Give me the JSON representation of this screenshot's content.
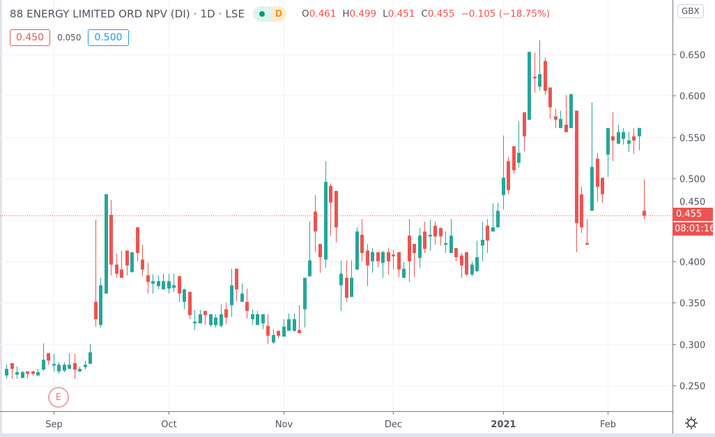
{
  "header": {
    "title": "88 ENERGY LIMITED ORD NPV (DI) · 1D · LSE",
    "badge_letter": "D",
    "ohlc": {
      "o_label": "O",
      "o": "0.461",
      "h_label": "H",
      "h": "0.499",
      "l_label": "L",
      "l": "0.451",
      "c_label": "C",
      "c": "0.455",
      "change": "−0.105 (−18.75%)"
    },
    "bid": "0.450",
    "spread": "0.050",
    "ask": "0.500"
  },
  "currency_button": "GBX",
  "last_price_label": "0.455",
  "countdown_label": "08:01:16",
  "earnings_marker": "E",
  "colors": {
    "up": "#26a69a",
    "down": "#ef5350",
    "grid": "#f0f3fa",
    "axis": "#787b86"
  },
  "chart_data": {
    "type": "candlestick",
    "title": "",
    "ylim": [
      0.2,
      0.68
    ],
    "y_ticks": [
      "0.250",
      "0.300",
      "0.350",
      "0.400",
      "0.450",
      "0.500",
      "0.550",
      "0.600",
      "0.650"
    ],
    "x_tick_labels": [
      {
        "label": "Sep",
        "candle": 9
      },
      {
        "label": "Oct",
        "candle": 31
      },
      {
        "label": "Nov",
        "candle": 53
      },
      {
        "label": "Dec",
        "candle": 74
      },
      {
        "label": "2021",
        "candle": 95,
        "bold": true
      },
      {
        "label": "Feb",
        "candle": 115
      }
    ],
    "grid": true,
    "last_price": 0.455,
    "candle_fields": [
      "open",
      "high",
      "low",
      "close"
    ],
    "candles": [
      [
        0.262,
        0.275,
        0.258,
        0.27
      ],
      [
        0.277,
        0.277,
        0.258,
        0.27
      ],
      [
        0.263,
        0.273,
        0.258,
        0.266
      ],
      [
        0.259,
        0.268,
        0.259,
        0.266
      ],
      [
        0.267,
        0.267,
        0.258,
        0.264
      ],
      [
        0.267,
        0.267,
        0.262,
        0.264
      ],
      [
        0.262,
        0.27,
        0.262,
        0.266
      ],
      [
        0.269,
        0.301,
        0.268,
        0.281
      ],
      [
        0.289,
        0.289,
        0.275,
        0.28
      ],
      [
        0.274,
        0.288,
        0.267,
        0.276
      ],
      [
        0.267,
        0.278,
        0.264,
        0.275
      ],
      [
        0.268,
        0.278,
        0.266,
        0.275
      ],
      [
        0.27,
        0.289,
        0.27,
        0.275
      ],
      [
        0.277,
        0.288,
        0.258,
        0.269
      ],
      [
        0.267,
        0.273,
        0.266,
        0.27
      ],
      [
        0.272,
        0.28,
        0.269,
        0.275
      ],
      [
        0.276,
        0.3,
        0.276,
        0.29
      ],
      [
        0.351,
        0.45,
        0.321,
        0.33
      ],
      [
        0.323,
        0.38,
        0.32,
        0.371
      ],
      [
        0.361,
        0.481,
        0.361,
        0.481
      ],
      [
        0.456,
        0.474,
        0.383,
        0.396
      ],
      [
        0.396,
        0.409,
        0.38,
        0.385
      ],
      [
        0.39,
        0.413,
        0.38,
        0.38
      ],
      [
        0.413,
        0.413,
        0.383,
        0.395
      ],
      [
        0.387,
        0.411,
        0.386,
        0.411
      ],
      [
        0.441,
        0.441,
        0.4,
        0.41
      ],
      [
        0.402,
        0.42,
        0.382,
        0.39
      ],
      [
        0.383,
        0.398,
        0.361,
        0.375
      ],
      [
        0.373,
        0.384,
        0.361,
        0.376
      ],
      [
        0.37,
        0.383,
        0.366,
        0.376
      ],
      [
        0.366,
        0.385,
        0.366,
        0.376
      ],
      [
        0.367,
        0.385,
        0.361,
        0.376
      ],
      [
        0.368,
        0.385,
        0.363,
        0.371
      ],
      [
        0.382,
        0.382,
        0.351,
        0.361
      ],
      [
        0.351,
        0.367,
        0.342,
        0.366
      ],
      [
        0.363,
        0.363,
        0.33,
        0.335
      ],
      [
        0.325,
        0.341,
        0.317,
        0.327
      ],
      [
        0.325,
        0.341,
        0.325,
        0.336
      ],
      [
        0.34,
        0.34,
        0.323,
        0.335
      ],
      [
        0.323,
        0.336,
        0.321,
        0.336
      ],
      [
        0.323,
        0.336,
        0.32,
        0.332
      ],
      [
        0.322,
        0.348,
        0.32,
        0.336
      ],
      [
        0.342,
        0.35,
        0.324,
        0.332
      ],
      [
        0.347,
        0.391,
        0.333,
        0.371
      ],
      [
        0.391,
        0.391,
        0.352,
        0.366
      ],
      [
        0.351,
        0.373,
        0.351,
        0.361
      ],
      [
        0.351,
        0.367,
        0.331,
        0.34
      ],
      [
        0.33,
        0.342,
        0.323,
        0.336
      ],
      [
        0.323,
        0.34,
        0.323,
        0.336
      ],
      [
        0.325,
        0.336,
        0.318,
        0.336
      ],
      [
        0.322,
        0.336,
        0.3,
        0.31
      ],
      [
        0.302,
        0.318,
        0.3,
        0.311
      ],
      [
        0.316,
        0.316,
        0.307,
        0.31
      ],
      [
        0.309,
        0.33,
        0.309,
        0.321
      ],
      [
        0.316,
        0.337,
        0.316,
        0.33
      ],
      [
        0.316,
        0.337,
        0.315,
        0.33
      ],
      [
        0.317,
        0.347,
        0.313,
        0.313
      ],
      [
        0.342,
        0.38,
        0.32,
        0.38
      ],
      [
        0.382,
        0.448,
        0.381,
        0.401
      ],
      [
        0.46,
        0.48,
        0.411,
        0.436
      ],
      [
        0.421,
        0.421,
        0.386,
        0.405
      ],
      [
        0.402,
        0.521,
        0.392,
        0.496
      ],
      [
        0.491,
        0.494,
        0.431,
        0.471
      ],
      [
        0.485,
        0.485,
        0.423,
        0.441
      ],
      [
        0.371,
        0.401,
        0.34,
        0.385
      ],
      [
        0.38,
        0.401,
        0.351,
        0.356
      ],
      [
        0.357,
        0.401,
        0.357,
        0.38
      ],
      [
        0.39,
        0.441,
        0.39,
        0.436
      ],
      [
        0.432,
        0.451,
        0.4,
        0.41
      ],
      [
        0.413,
        0.421,
        0.37,
        0.395
      ],
      [
        0.4,
        0.416,
        0.386,
        0.411
      ],
      [
        0.411,
        0.411,
        0.393,
        0.4
      ],
      [
        0.398,
        0.413,
        0.38,
        0.411
      ],
      [
        0.411,
        0.416,
        0.384,
        0.4
      ],
      [
        0.408,
        0.414,
        0.39,
        0.406
      ],
      [
        0.411,
        0.411,
        0.381,
        0.39
      ],
      [
        0.38,
        0.399,
        0.38,
        0.391
      ],
      [
        0.431,
        0.451,
        0.375,
        0.4
      ],
      [
        0.421,
        0.421,
        0.381,
        0.41
      ],
      [
        0.404,
        0.44,
        0.392,
        0.431
      ],
      [
        0.436,
        0.448,
        0.41,
        0.415
      ],
      [
        0.43,
        0.45,
        0.413,
        0.432
      ],
      [
        0.443,
        0.448,
        0.42,
        0.43
      ],
      [
        0.44,
        0.441,
        0.419,
        0.43
      ],
      [
        0.42,
        0.436,
        0.41,
        0.422
      ],
      [
        0.41,
        0.451,
        0.41,
        0.431
      ],
      [
        0.416,
        0.416,
        0.4,
        0.405
      ],
      [
        0.407,
        0.41,
        0.38,
        0.395
      ],
      [
        0.411,
        0.411,
        0.382,
        0.384
      ],
      [
        0.384,
        0.4,
        0.382,
        0.396
      ],
      [
        0.388,
        0.425,
        0.387,
        0.405
      ],
      [
        0.419,
        0.448,
        0.4,
        0.426
      ],
      [
        0.443,
        0.451,
        0.41,
        0.425
      ],
      [
        0.436,
        0.47,
        0.436,
        0.441
      ],
      [
        0.441,
        0.471,
        0.441,
        0.461
      ],
      [
        0.48,
        0.552,
        0.463,
        0.501
      ],
      [
        0.521,
        0.526,
        0.481,
        0.486
      ],
      [
        0.539,
        0.539,
        0.506,
        0.51
      ],
      [
        0.519,
        0.569,
        0.513,
        0.531
      ],
      [
        0.58,
        0.58,
        0.533,
        0.551
      ],
      [
        0.571,
        0.653,
        0.571,
        0.653
      ],
      [
        0.623,
        0.652,
        0.604,
        0.621
      ],
      [
        0.611,
        0.667,
        0.606,
        0.626
      ],
      [
        0.642,
        0.646,
        0.601,
        0.606
      ],
      [
        0.61,
        0.61,
        0.572,
        0.586
      ],
      [
        0.575,
        0.584,
        0.561,
        0.571
      ],
      [
        0.561,
        0.582,
        0.561,
        0.572
      ],
      [
        0.565,
        0.601,
        0.556,
        0.556
      ],
      [
        0.561,
        0.602,
        0.561,
        0.602
      ],
      [
        0.582,
        0.582,
        0.411,
        0.446
      ],
      [
        0.481,
        0.49,
        0.434,
        0.441
      ],
      [
        0.422,
        0.451,
        0.42,
        0.42
      ],
      [
        0.461,
        0.592,
        0.461,
        0.514
      ],
      [
        0.524,
        0.531,
        0.472,
        0.49
      ],
      [
        0.501,
        0.501,
        0.471,
        0.481
      ],
      [
        0.529,
        0.561,
        0.502,
        0.561
      ],
      [
        0.551,
        0.58,
        0.521,
        0.546
      ],
      [
        0.542,
        0.565,
        0.542,
        0.556
      ],
      [
        0.548,
        0.561,
        0.541,
        0.556
      ],
      [
        0.542,
        0.557,
        0.532,
        0.546
      ],
      [
        0.551,
        0.561,
        0.53,
        0.546
      ],
      [
        0.551,
        0.561,
        0.534,
        0.561
      ],
      [
        0.461,
        0.499,
        0.451,
        0.455
      ]
    ]
  }
}
